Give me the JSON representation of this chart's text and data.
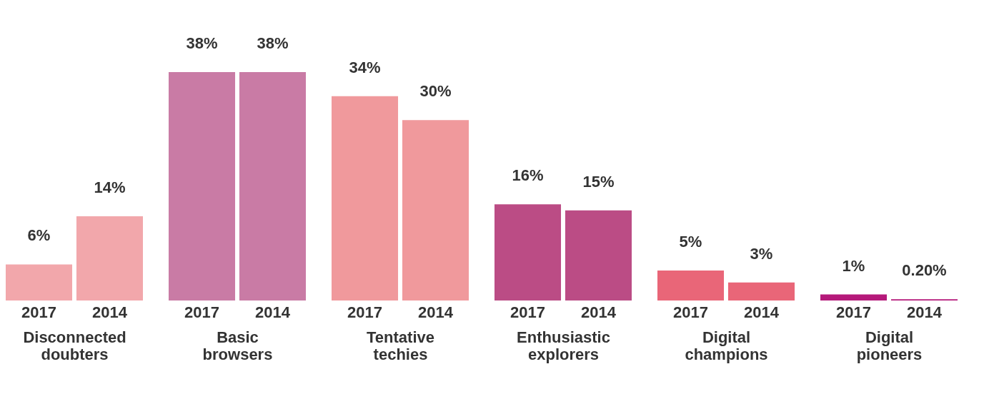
{
  "chart_data": [
    {
      "type": "bar",
      "categories": [
        "2017",
        "2014"
      ],
      "values": [
        6,
        14
      ],
      "colors": [
        "#f2a7ab",
        "#f2a7ab"
      ],
      "xlabel": "Disconnected doubters",
      "value_labels": [
        "6%",
        "14%"
      ]
    },
    {
      "type": "bar",
      "categories": [
        "2017",
        "2014"
      ],
      "values": [
        38,
        38
      ],
      "colors": [
        "#c97ba5",
        "#c97ba5"
      ],
      "xlabel": "Basic browsers",
      "value_labels": [
        "38%",
        "38%"
      ]
    },
    {
      "type": "bar",
      "categories": [
        "2017",
        "2014"
      ],
      "values": [
        34,
        30
      ],
      "colors": [
        "#f0999c",
        "#f0999c"
      ],
      "xlabel": "Tentative techies",
      "value_labels": [
        "34%",
        "30%"
      ]
    },
    {
      "type": "bar",
      "categories": [
        "2017",
        "2014"
      ],
      "values": [
        16,
        15
      ],
      "colors": [
        "#bb4c85",
        "#bb4c85"
      ],
      "xlabel": "Enthusiastic explorers",
      "value_labels": [
        "16%",
        "15%"
      ]
    },
    {
      "type": "bar",
      "categories": [
        "2017",
        "2014"
      ],
      "values": [
        5,
        3
      ],
      "colors": [
        "#e96678",
        "#e96678"
      ],
      "xlabel": "Digital champions",
      "value_labels": [
        "5%",
        "3%"
      ]
    },
    {
      "type": "bar",
      "categories": [
        "2017",
        "2014"
      ],
      "values": [
        1,
        0.2
      ],
      "colors": [
        "#b5197a",
        "#b5197a"
      ],
      "xlabel": "Digital pioneers",
      "value_labels": [
        "1%",
        "0.20%"
      ]
    }
  ]
}
